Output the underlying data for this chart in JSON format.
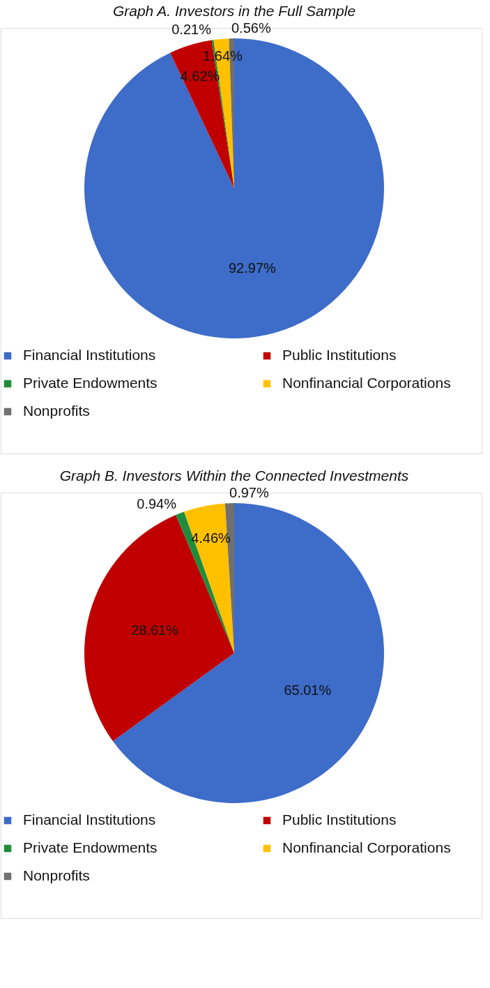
{
  "chart_data": [
    {
      "type": "pie",
      "title": "Graph A. Investors in the Full Sample",
      "categories": [
        "Financial Institutions",
        "Public Institutions",
        "Private Endowments",
        "Nonfinancial Corporations",
        "Nonprofits"
      ],
      "values": [
        92.97,
        4.62,
        0.21,
        1.64,
        0.56
      ],
      "value_labels": [
        "92.97%",
        "4.62%",
        "0.21%",
        "1.64%",
        "0.56%"
      ],
      "colors": [
        "#3d6cc9",
        "#c00000",
        "#1e8c3c",
        "#ffc000",
        "#707070"
      ],
      "legend": "bottom"
    },
    {
      "type": "pie",
      "title": "Graph B. Investors Within the Connected Investments",
      "categories": [
        "Financial Institutions",
        "Public Institutions",
        "Private Endowments",
        "Nonfinancial Corporations",
        "Nonprofits"
      ],
      "values": [
        65.01,
        28.61,
        0.94,
        4.46,
        0.97
      ],
      "value_labels": [
        "65.01%",
        "28.61%",
        "0.94%",
        "4.46%",
        "0.97%"
      ],
      "colors": [
        "#3d6cc9",
        "#c00000",
        "#1e8c3c",
        "#ffc000",
        "#707070"
      ],
      "legend": "bottom"
    }
  ]
}
